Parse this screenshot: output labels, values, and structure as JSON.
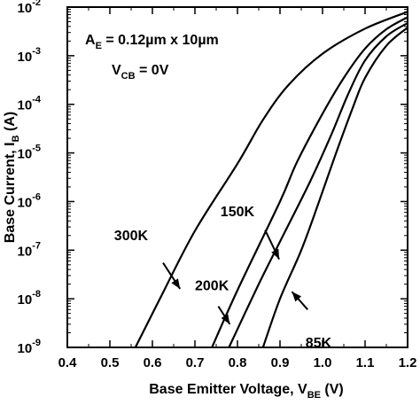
{
  "chart_data": {
    "type": "line",
    "title": "",
    "xlabel": {
      "main": "Base Emitter Voltage, V",
      "sub": "BE",
      "unit": " (V)"
    },
    "ylabel": {
      "main": "Base Current, I",
      "sub": "B",
      "unit": " (A)"
    },
    "xlim": [
      0.4,
      1.2
    ],
    "ylim": [
      1e-09,
      0.01
    ],
    "yscale": "log",
    "grid": false,
    "x_ticks": [
      {
        "v": 0.4,
        "label": "0.4"
      },
      {
        "v": 0.5,
        "label": "0.5"
      },
      {
        "v": 0.6,
        "label": "0.6"
      },
      {
        "v": 0.7,
        "label": "0.7"
      },
      {
        "v": 0.8,
        "label": "0.8"
      },
      {
        "v": 0.9,
        "label": "0.9"
      },
      {
        "v": 1.0,
        "label": "1.0"
      },
      {
        "v": 1.1,
        "label": "1.1"
      },
      {
        "v": 1.2,
        "label": "1.2"
      }
    ],
    "y_ticks": [
      {
        "exp": -9,
        "base": "10",
        "sup": "-9"
      },
      {
        "exp": -8,
        "base": "10",
        "sup": "-8"
      },
      {
        "exp": -7,
        "base": "10",
        "sup": "-7"
      },
      {
        "exp": -6,
        "base": "10",
        "sup": "-6"
      },
      {
        "exp": -5,
        "base": "10",
        "sup": "-5"
      },
      {
        "exp": -4,
        "base": "10",
        "sup": "-4"
      },
      {
        "exp": -3,
        "base": "10",
        "sup": "-3"
      },
      {
        "exp": -2,
        "base": "10",
        "sup": "-2"
      }
    ],
    "series": [
      {
        "name": "300K",
        "points": [
          [
            0.56,
            1e-09
          ],
          [
            0.62,
            1.1e-08
          ],
          [
            0.7,
            2.5e-07
          ],
          [
            0.8,
            6e-06
          ],
          [
            0.86,
            4.8e-05
          ],
          [
            0.92,
            0.00025
          ],
          [
            1.0,
            0.0011
          ],
          [
            1.1,
            0.0036
          ],
          [
            1.2,
            0.008
          ]
        ]
      },
      {
        "name": "200K",
        "points": [
          [
            0.74,
            1e-09
          ],
          [
            0.8,
            1.5e-08
          ],
          [
            0.9,
            1e-06
          ],
          [
            0.94,
            6.5e-06
          ],
          [
            1.0,
            6.4e-05
          ],
          [
            1.05,
            0.00035
          ],
          [
            1.1,
            0.0014
          ],
          [
            1.15,
            0.0035
          ],
          [
            1.2,
            0.0062
          ]
        ]
      },
      {
        "name": "150K",
        "points": [
          [
            0.78,
            1e-09
          ],
          [
            0.85,
            2e-08
          ],
          [
            0.9,
            1.5e-07
          ],
          [
            0.97,
            2.5e-06
          ],
          [
            1.02,
            2.3e-05
          ],
          [
            1.06,
            0.00016
          ],
          [
            1.1,
            0.0008
          ],
          [
            1.15,
            0.0025
          ],
          [
            1.2,
            0.0047
          ]
        ]
      },
      {
        "name": "85K",
        "points": [
          [
            0.86,
            1e-09
          ],
          [
            0.9,
            1e-08
          ],
          [
            0.95,
            1e-07
          ],
          [
            0.99,
            9e-07
          ],
          [
            1.03,
            9e-06
          ],
          [
            1.07,
            8e-05
          ],
          [
            1.1,
            0.00035
          ],
          [
            1.15,
            0.0016
          ],
          [
            1.2,
            0.0038
          ]
        ]
      }
    ],
    "annotations": {
      "device_line": {
        "a": "A",
        "a_sub": "E",
        "rest": " = 0.12µm x 10µm"
      },
      "bias_line": {
        "v": "V",
        "v_sub": "CB",
        "rest": " = 0V"
      },
      "labels": [
        {
          "series": "300K",
          "text": "300K",
          "tx": 0.51,
          "ty": 1.6e-07,
          "from": [
            0.625,
            5.5e-08
          ],
          "to": [
            0.665,
            1.6e-08
          ]
        },
        {
          "series": "200K",
          "text": "200K",
          "tx": 0.7,
          "ty": 1.5e-08,
          "from": [
            0.755,
            7e-09
          ],
          "to": [
            0.782,
            3e-09
          ]
        },
        {
          "series": "150K",
          "text": "150K",
          "tx": 0.76,
          "ty": 5e-07,
          "from": [
            0.865,
            2.6e-07
          ],
          "to": [
            0.898,
            6.5e-08
          ]
        },
        {
          "series": "85K",
          "text": "85K",
          "tx": 0.96,
          "ty": 1e-09,
          "from": [
            0.965,
            6e-09
          ],
          "to": [
            0.928,
            1.4e-08
          ]
        }
      ]
    }
  }
}
